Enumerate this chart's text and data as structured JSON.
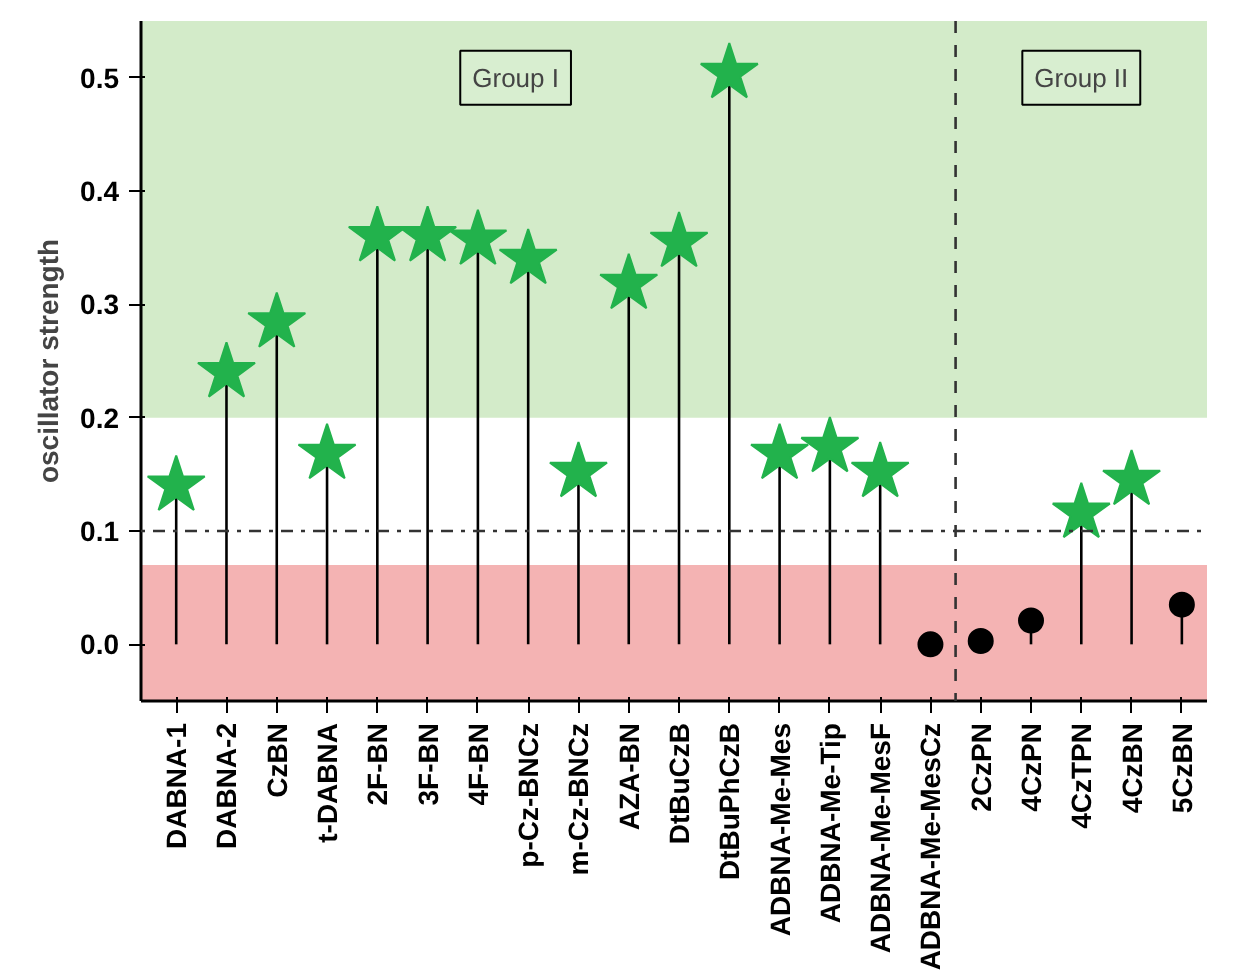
{
  "chart_data": {
    "type": "lollipop",
    "ylabel": "oscillator strength",
    "categories": [
      "DABNA-1",
      "DABNA-2",
      "CzBN",
      "t-DABNA",
      "2F-BN",
      "3F-BN",
      "4F-BN",
      "p-Cz-BNCz",
      "m-Cz-BNCz",
      "AZA-BN",
      "DtBuCzB",
      "DtBuPhCzB",
      "ADBNA-Me-Mes",
      "ADBNA-Me-Tip",
      "ADBNA-Me-MesF",
      "ADBNA-Me-MesCz",
      "2CzPN",
      "4CzPN",
      "4CzTPN",
      "4CzBN",
      "5CzBN"
    ],
    "series": [
      {
        "color": "#22b24c",
        "marker": "star",
        "values": [
          0.14,
          0.24,
          0.284,
          0.168,
          0.36,
          0.36,
          0.357,
          0.34,
          0.152,
          0.318,
          0.355,
          0.504,
          0.168,
          0.174,
          0.152,
          null,
          null,
          null,
          0.116,
          0.145,
          null
        ]
      },
      {
        "color": "#000000",
        "marker": "circle",
        "values": [
          null,
          null,
          null,
          null,
          null,
          null,
          null,
          null,
          null,
          null,
          null,
          null,
          null,
          null,
          null,
          0.0,
          0.003,
          0.021,
          null,
          null,
          0.035
        ]
      }
    ],
    "ylim": [
      -0.05,
      0.55
    ],
    "yticks": [
      {
        "value": 0,
        "label": "0.0"
      },
      0.1,
      0.2,
      0.3,
      0.4,
      0.5
    ],
    "grid": false,
    "bands": [
      {
        "axis": "y",
        "from": -0.05,
        "to": 0.07,
        "color": "#f4b3b3"
      },
      {
        "axis": "y",
        "from": 0.2,
        "to": 0.55,
        "color": "#d3ebc9"
      }
    ],
    "ref_lines": [
      {
        "axis": "y",
        "value": 0.1,
        "line_style": "dashdot"
      }
    ],
    "annotations": [
      "Group I",
      "Group II"
    ]
  }
}
